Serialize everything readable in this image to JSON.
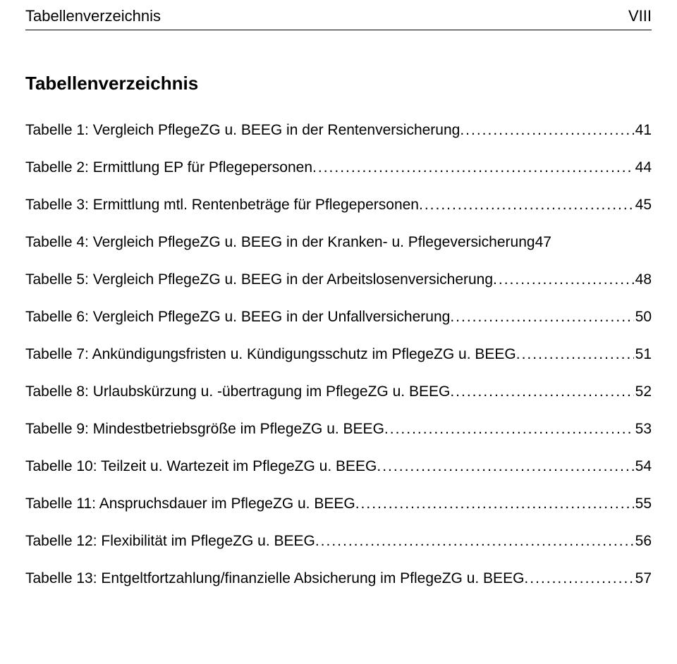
{
  "header": {
    "left": "Tabellenverzeichnis",
    "right": "VIII"
  },
  "section_title": "Tabellenverzeichnis",
  "entries": [
    {
      "label": "Tabelle 1: Vergleich PflegeZG u. BEEG in der Rentenversicherung",
      "label2": "",
      "page": "41"
    },
    {
      "label": "Tabelle 2: Ermittlung EP für Pflegepersonen",
      "label2": "",
      "page": "44"
    },
    {
      "label": "Tabelle 3: Ermittlung mtl. Rentenbeträge für Pflegepersonen",
      "label2": "",
      "page": "45"
    },
    {
      "label": "Tabelle 4: Vergleich PflegeZG u. BEEG in der Kranken- u. Pflegeversicherung",
      "label2": "47",
      "page": ""
    },
    {
      "label": "Tabelle 5: Vergleich PflegeZG u. BEEG in der Arbeitslosenversicherung",
      "label2": "",
      "page": "48"
    },
    {
      "label": "Tabelle 6: Vergleich PflegeZG u. BEEG in der Unfallversicherung",
      "label2": "",
      "page": "50"
    },
    {
      "label": "Tabelle 7: Ankündigungsfristen u. Kündigungsschutz im PflegeZG u. BEEG",
      "label2": "",
      "page": "51"
    },
    {
      "label": "Tabelle 8: Urlaubskürzung u. -übertragung im PflegeZG u. BEEG",
      "label2": "",
      "page": "52"
    },
    {
      "label": "Tabelle 9: Mindestbetriebsgröße im PflegeZG u. BEEG",
      "label2": "",
      "page": "53"
    },
    {
      "label": "Tabelle 10: Teilzeit u. Wartezeit im PflegeZG u. BEEG",
      "label2": "",
      "page": "54"
    },
    {
      "label": "Tabelle 11: Anspruchsdauer im PflegeZG u. BEEG",
      "label2": "",
      "page": "55"
    },
    {
      "label": "Tabelle 12: Flexibilität im PflegeZG u. BEEG",
      "label2": "",
      "page": "56"
    },
    {
      "label": "Tabelle 13: Entgeltfortzahlung/finanzielle Absicherung im PflegeZG u. BEEG",
      "label2": "",
      "page": "57"
    }
  ]
}
